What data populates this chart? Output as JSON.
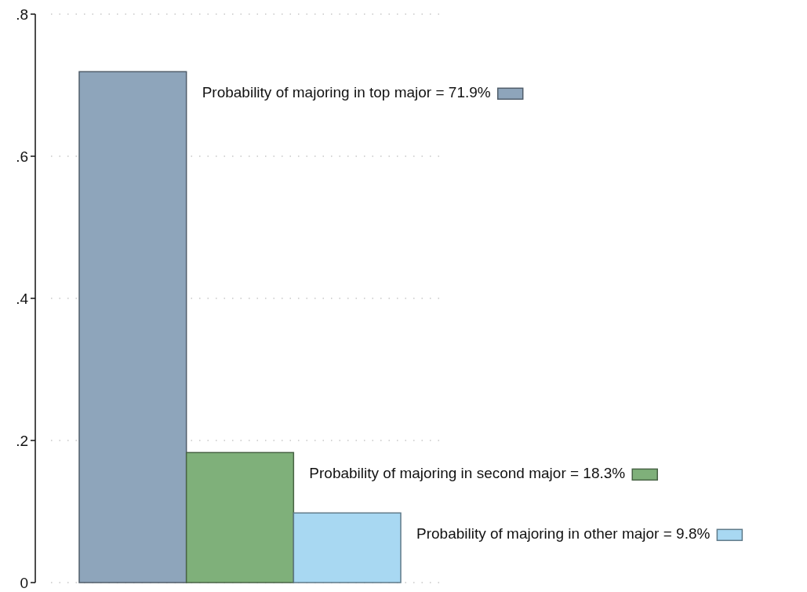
{
  "chart_data": {
    "type": "bar",
    "categories": [
      null
    ],
    "series": [
      {
        "name": "Probability of majoring in top major = 71.9%",
        "color": "#8ea5bb",
        "values": [
          0.719
        ]
      },
      {
        "name": "Probability of majoring in second major = 18.3%",
        "color": "#7fb07a",
        "values": [
          0.183
        ]
      },
      {
        "name": "Probability of majoring in other major = 9.8%",
        "color": "#a8d8f2",
        "values": [
          0.098
        ]
      }
    ],
    "ylim": [
      0,
      0.8
    ],
    "yticks": [
      {
        "value": 0,
        "label": "0"
      },
      {
        "value": 0.2,
        "label": ".2"
      },
      {
        "value": 0.4,
        "label": ".4"
      },
      {
        "value": 0.6,
        "label": ".6"
      },
      {
        "value": 0.8,
        "label": ".8"
      }
    ],
    "grid": "y",
    "legend": "right"
  }
}
